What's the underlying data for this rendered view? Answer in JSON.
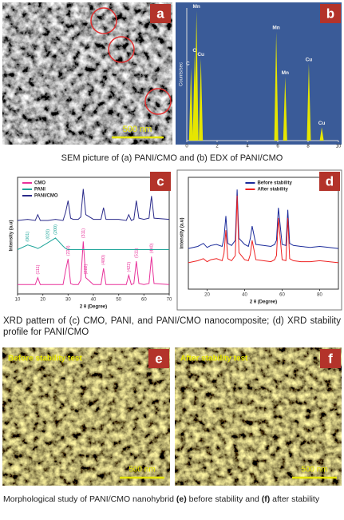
{
  "panel_labels": [
    "a",
    "b",
    "c",
    "d",
    "e",
    "f"
  ],
  "scale_bars": [
    "500 nm",
    "500 nm",
    "500 nm"
  ],
  "image_texts": [
    "Before stability test",
    "After stability test"
  ],
  "captions": [
    [
      "SEM picture of (a) PANI/CMO and (b) EDX of PANI/CMO"
    ],
    [
      "XRD pattern of (c) CMO, PANI, and PANI/CMO nanocomposite; (d) XRD stability profile for PANI/CMO"
    ],
    [
      "Morphological study of PANI/CMO nanohybrid ",
      "(e)",
      " before stability and ",
      "(f)",
      " after stability"
    ]
  ],
  "chart_data": [
    {
      "type": "bar",
      "ylabel": "Counts/sec",
      "color": "#e6e600",
      "background": "#3a5b98",
      "x": [
        0.28,
        0.52,
        0.64,
        0.93,
        5.9,
        6.49,
        8.05,
        8.9
      ],
      "values": [
        55,
        65,
        98,
        62,
        82,
        48,
        58,
        10
      ],
      "peak_labels": [
        "C",
        "O",
        "Mn",
        "Cu",
        "Mn",
        "Mn",
        "Cu",
        "Cu"
      ],
      "xlim": [
        0,
        10
      ],
      "xticks": [
        0,
        2,
        4,
        6,
        8,
        10
      ],
      "ylim": [
        0,
        100
      ]
    },
    {
      "type": "line",
      "xlabel": "2 θ (Degree)",
      "ylabel": "Intensity (a.u)",
      "legend": "top-left",
      "x": [
        10,
        14,
        17,
        18,
        19,
        22,
        25,
        28,
        29,
        30,
        31,
        32,
        34,
        35,
        36,
        37,
        40,
        43,
        44,
        45,
        50,
        53,
        54,
        55,
        56,
        57,
        58,
        60,
        62,
        63,
        64,
        70
      ],
      "series": [
        {
          "name": "CMO",
          "color": "#e8319a",
          "values": [
            8,
            8,
            8,
            14,
            8,
            8,
            8,
            8,
            20,
            30,
            9,
            8,
            8,
            12,
            45,
            14,
            8,
            8,
            22,
            8,
            8,
            8,
            16,
            8,
            9,
            28,
            9,
            8,
            9,
            32,
            9,
            8
          ],
          "peak_labels": [
            {
              "text": "(111)",
              "x": 18
            },
            {
              "text": "(220)",
              "x": 30
            },
            {
              "text": "(311)",
              "x": 36
            },
            {
              "text": "(222)",
              "x": 37
            },
            {
              "text": "(400)",
              "x": 44
            },
            {
              "text": "(422)",
              "x": 54
            },
            {
              "text": "(511)",
              "x": 57
            },
            {
              "text": "(440)",
              "x": 63
            }
          ]
        },
        {
          "name": "PANI",
          "color": "#1fa59a",
          "values": [
            38,
            42,
            40,
            39,
            40,
            44,
            48,
            41,
            39,
            38,
            38,
            38,
            38,
            38,
            38,
            38,
            38,
            38,
            38,
            38,
            38,
            38,
            38,
            38,
            38,
            38,
            38,
            38,
            38,
            38,
            38,
            38
          ],
          "peak_labels": [
            {
              "text": "(001)",
              "x": 14
            },
            {
              "text": "(020)",
              "x": 22
            },
            {
              "text": "(200)",
              "x": 25
            }
          ]
        },
        {
          "name": "PANI/CMO",
          "color": "#2a2a8a",
          "values": [
            63,
            64,
            63,
            68,
            63,
            63,
            64,
            63,
            70,
            80,
            65,
            64,
            64,
            66,
            90,
            68,
            64,
            64,
            74,
            64,
            64,
            63,
            68,
            63,
            64,
            80,
            65,
            64,
            65,
            84,
            65,
            64
          ]
        }
      ],
      "xlim": [
        10,
        70
      ],
      "xticks": [
        10,
        20,
        30,
        40,
        50,
        60,
        70
      ],
      "ylim": [
        0,
        100
      ]
    },
    {
      "type": "line",
      "xlabel": "2 θ (Degree)",
      "ylabel": "Intensity (a.u)",
      "legend": "top-right",
      "x": [
        10,
        15,
        18,
        20,
        22,
        25,
        28,
        29,
        30,
        31,
        33,
        35,
        36,
        37,
        40,
        42,
        43,
        44,
        46,
        50,
        54,
        56,
        57,
        58,
        60,
        62,
        63,
        64,
        66,
        70,
        75,
        80,
        85,
        90
      ],
      "series": [
        {
          "name": "Before stability",
          "color": "#1a2a9a",
          "values": [
            40,
            42,
            45,
            41,
            43,
            44,
            42,
            50,
            72,
            45,
            43,
            48,
            98,
            50,
            44,
            42,
            50,
            62,
            44,
            43,
            42,
            44,
            48,
            80,
            44,
            43,
            78,
            45,
            43,
            42,
            41,
            42,
            41,
            40
          ]
        },
        {
          "name": "After stability",
          "color": "#ee2222",
          "values": [
            26,
            28,
            30,
            27,
            29,
            30,
            28,
            35,
            58,
            30,
            28,
            33,
            92,
            36,
            29,
            28,
            34,
            48,
            29,
            28,
            27,
            29,
            33,
            70,
            29,
            28,
            70,
            30,
            28,
            27,
            27,
            28,
            27,
            26
          ]
        }
      ],
      "xlim": [
        10,
        90
      ],
      "xticks": [
        20,
        40,
        60,
        80
      ],
      "ylim": [
        0,
        110
      ]
    }
  ]
}
